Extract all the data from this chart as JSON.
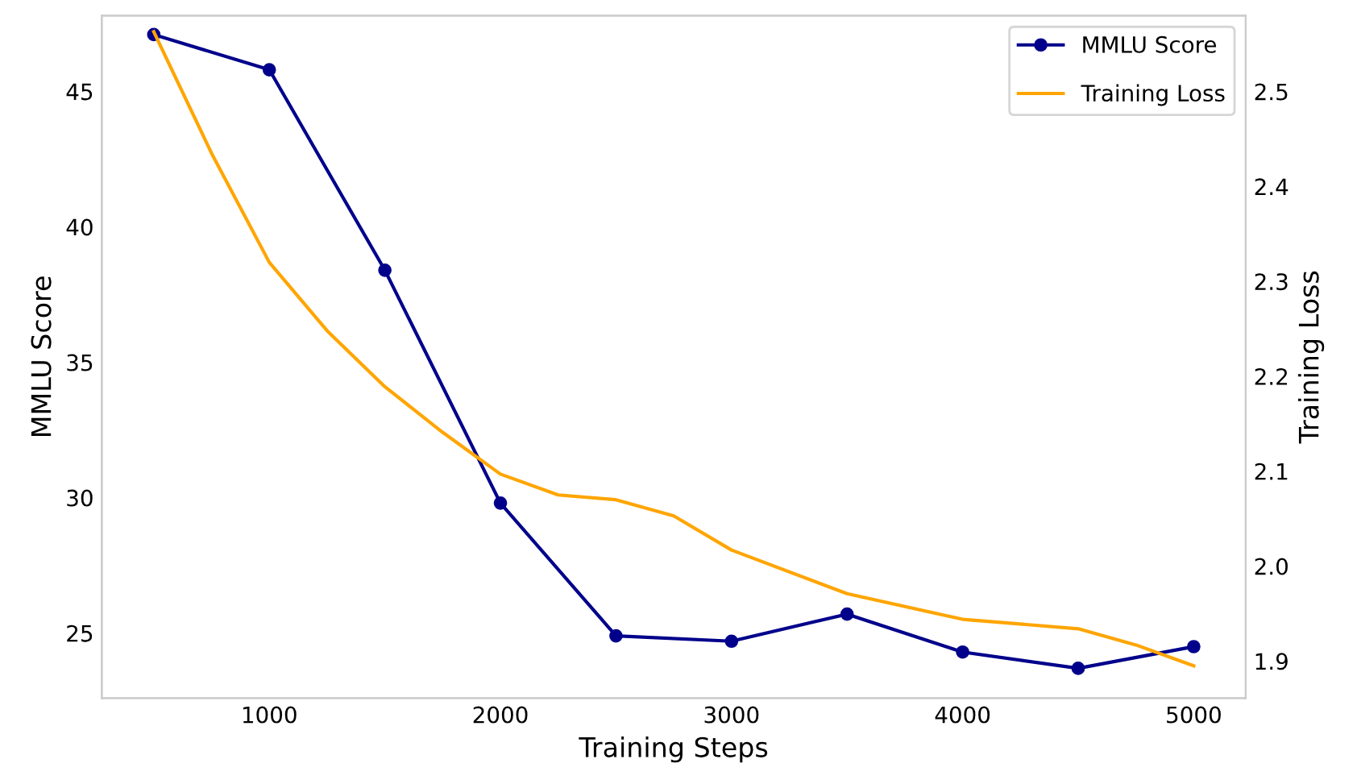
{
  "chart_data": {
    "type": "line",
    "xlabel": "Training Steps",
    "ylabel": "MMLU Score",
    "y2label": "Training Loss",
    "series": [
      {
        "name": "MMLU Score",
        "color": "#00008b",
        "marker": "circle",
        "x": [
          500,
          1000,
          1500,
          2000,
          2500,
          3000,
          3500,
          4000,
          4500,
          5000
        ],
        "values": [
          47.1,
          45.8,
          38.4,
          29.8,
          24.9,
          24.7,
          25.7,
          24.3,
          23.7,
          24.5
        ]
      },
      {
        "name": "Training Loss",
        "color": "#ffa500",
        "axis": "y2",
        "marker": "none",
        "x": [
          500,
          750,
          1000,
          1250,
          1500,
          1750,
          2000,
          2250,
          2500,
          2750,
          3000,
          3500,
          4000,
          4500,
          4750,
          5000
        ],
        "values": [
          2.563,
          2.435,
          2.32,
          2.248,
          2.189,
          2.141,
          2.097,
          2.075,
          2.07,
          2.053,
          2.017,
          1.971,
          1.944,
          1.934,
          1.917,
          1.895
        ]
      }
    ],
    "xlim": [
      275,
      5225
    ],
    "xticks": [
      1000,
      2000,
      3000,
      4000,
      5000
    ],
    "ylim": [
      22.6,
      47.8
    ],
    "yticks": [
      25,
      30,
      35,
      40,
      45
    ],
    "y2lim": [
      1.861,
      2.58
    ],
    "y2ticks": [
      1.9,
      {
        "value": 2.0,
        "label": "2.0"
      },
      2.1,
      2.2,
      2.3,
      2.4,
      2.5
    ],
    "grid": false,
    "legend": "top right",
    "line_style": "solid"
  }
}
